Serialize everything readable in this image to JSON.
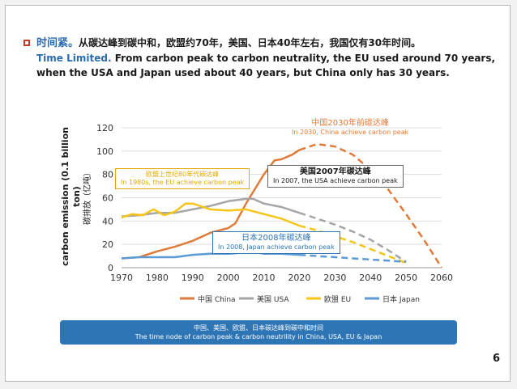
{
  "headline": {
    "cn": "时间紧。",
    "cn_body": "从碳达峰到碳中和，欧盟约70年，美国、日本40年左右，我国仅有30年时间。",
    "en": "Time Limited.",
    "en_body": "From carbon peak to carbon neutrality, the EU used around 70 years, when the USA and Japan used about 40 years, but China only has 30 years."
  },
  "banner": {
    "cn": "中国、美国、欧盟、日本碳达峰到碳中和时间",
    "en": "The time node of carbon peak & carbon neutrility in China, USA, EU & Japan"
  },
  "page_number": "6",
  "chart_data": {
    "type": "line",
    "ylabel": "carbon emission (0.1 billion ton)",
    "ylabel_cn": "碳排放（亿吨）",
    "xlim": [
      1970,
      2060
    ],
    "ylim": [
      0,
      120
    ],
    "x_ticks": [
      1970,
      1980,
      1990,
      2000,
      2010,
      2020,
      2030,
      2040,
      2050,
      2060
    ],
    "y_ticks": [
      0,
      20,
      40,
      60,
      80,
      100,
      120
    ],
    "grid": "horizontal",
    "legend_placement": "bottom",
    "series": [
      {
        "name": "中国 China",
        "color": "#e07b39",
        "historical": [
          [
            1970,
            8
          ],
          [
            1975,
            9
          ],
          [
            1980,
            14
          ],
          [
            1985,
            18
          ],
          [
            1990,
            23
          ],
          [
            1995,
            30
          ],
          [
            2000,
            34
          ],
          [
            2002,
            38
          ],
          [
            2005,
            55
          ],
          [
            2008,
            70
          ],
          [
            2010,
            80
          ],
          [
            2013,
            92
          ],
          [
            2015,
            93
          ],
          [
            2018,
            97
          ],
          [
            2020,
            101
          ]
        ],
        "projected": [
          [
            2020,
            101
          ],
          [
            2025,
            106
          ],
          [
            2030,
            104
          ],
          [
            2035,
            97
          ],
          [
            2040,
            84
          ],
          [
            2045,
            67
          ],
          [
            2050,
            46
          ],
          [
            2055,
            24
          ],
          [
            2060,
            0
          ]
        ]
      },
      {
        "name": "美国 USA",
        "color": "#a6a6a6",
        "historical": [
          [
            1970,
            44
          ],
          [
            1975,
            45
          ],
          [
            1980,
            47
          ],
          [
            1985,
            47
          ],
          [
            1990,
            50
          ],
          [
            1995,
            53
          ],
          [
            2000,
            57
          ],
          [
            2005,
            59
          ],
          [
            2007,
            59
          ],
          [
            2010,
            55
          ],
          [
            2015,
            52
          ],
          [
            2020,
            47
          ]
        ],
        "projected": [
          [
            2020,
            47
          ],
          [
            2025,
            42
          ],
          [
            2030,
            37
          ],
          [
            2035,
            31
          ],
          [
            2040,
            24
          ],
          [
            2045,
            15
          ],
          [
            2050,
            5
          ]
        ]
      },
      {
        "name": "欧盟 EU",
        "color": "#f5c518",
        "historical": [
          [
            1970,
            43
          ],
          [
            1973,
            46
          ],
          [
            1976,
            45
          ],
          [
            1979,
            50
          ],
          [
            1982,
            45
          ],
          [
            1985,
            48
          ],
          [
            1988,
            55
          ],
          [
            1990,
            55
          ],
          [
            1995,
            50
          ],
          [
            2000,
            49
          ],
          [
            2005,
            50
          ],
          [
            2010,
            46
          ],
          [
            2015,
            42
          ],
          [
            2020,
            36
          ]
        ],
        "projected": [
          [
            2020,
            36
          ],
          [
            2025,
            32
          ],
          [
            2030,
            27
          ],
          [
            2035,
            22
          ],
          [
            2040,
            16
          ],
          [
            2045,
            10
          ],
          [
            2050,
            4
          ]
        ]
      },
      {
        "name": "日本 Japan",
        "color": "#5b9bd5",
        "historical": [
          [
            1970,
            8
          ],
          [
            1975,
            9
          ],
          [
            1980,
            9
          ],
          [
            1985,
            9
          ],
          [
            1990,
            11
          ],
          [
            1995,
            12
          ],
          [
            2000,
            12
          ],
          [
            2005,
            13
          ],
          [
            2008,
            13
          ],
          [
            2010,
            12
          ],
          [
            2015,
            12
          ],
          [
            2020,
            11
          ]
        ],
        "projected": [
          [
            2020,
            11
          ],
          [
            2025,
            10
          ],
          [
            2030,
            9
          ],
          [
            2035,
            8
          ],
          [
            2040,
            7
          ],
          [
            2045,
            6
          ],
          [
            2050,
            5
          ]
        ]
      }
    ],
    "annotations": [
      {
        "cn": "中国2030年前碳达峰",
        "en": "In 2030, China achieve carbon peak",
        "color": "#e07b39",
        "boxed": false
      },
      {
        "cn": "美国2007年碳达峰",
        "en": "In 2007, the USA achieve carbon peak",
        "color": "#1a1a1a",
        "boxed": true
      },
      {
        "cn": "欧盟上世纪80年代碳达峰",
        "en": "In 1980s, the EU achieve carbon peak",
        "color": "#e0a800",
        "boxed": true
      },
      {
        "cn": "日本2008年碳达峰",
        "en": "In 2008, Japan achieve carbon peak",
        "color": "#2e75b6",
        "boxed": true
      }
    ]
  }
}
